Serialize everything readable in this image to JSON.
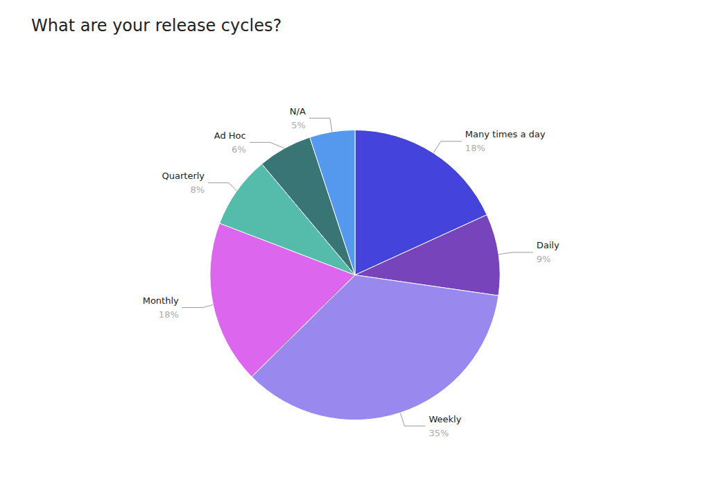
{
  "chart_data": {
    "type": "pie",
    "title": "What are your release cycles?",
    "categories": [
      "Many times a day",
      "Daily",
      "Weekly",
      "Monthly",
      "Quarterly",
      "Ad Hoc",
      "N/A"
    ],
    "values": [
      18,
      9,
      35,
      18,
      8,
      6,
      5
    ],
    "value_labels": [
      "18%",
      "9%",
      "35%",
      "18%",
      "8%",
      "6%",
      "5%"
    ],
    "colors": [
      "#4444dd",
      "#7744bb",
      "#9988ee",
      "#dd66ee",
      "#55bbaa",
      "#3a7575",
      "#5599ee"
    ],
    "data_labels": true
  }
}
